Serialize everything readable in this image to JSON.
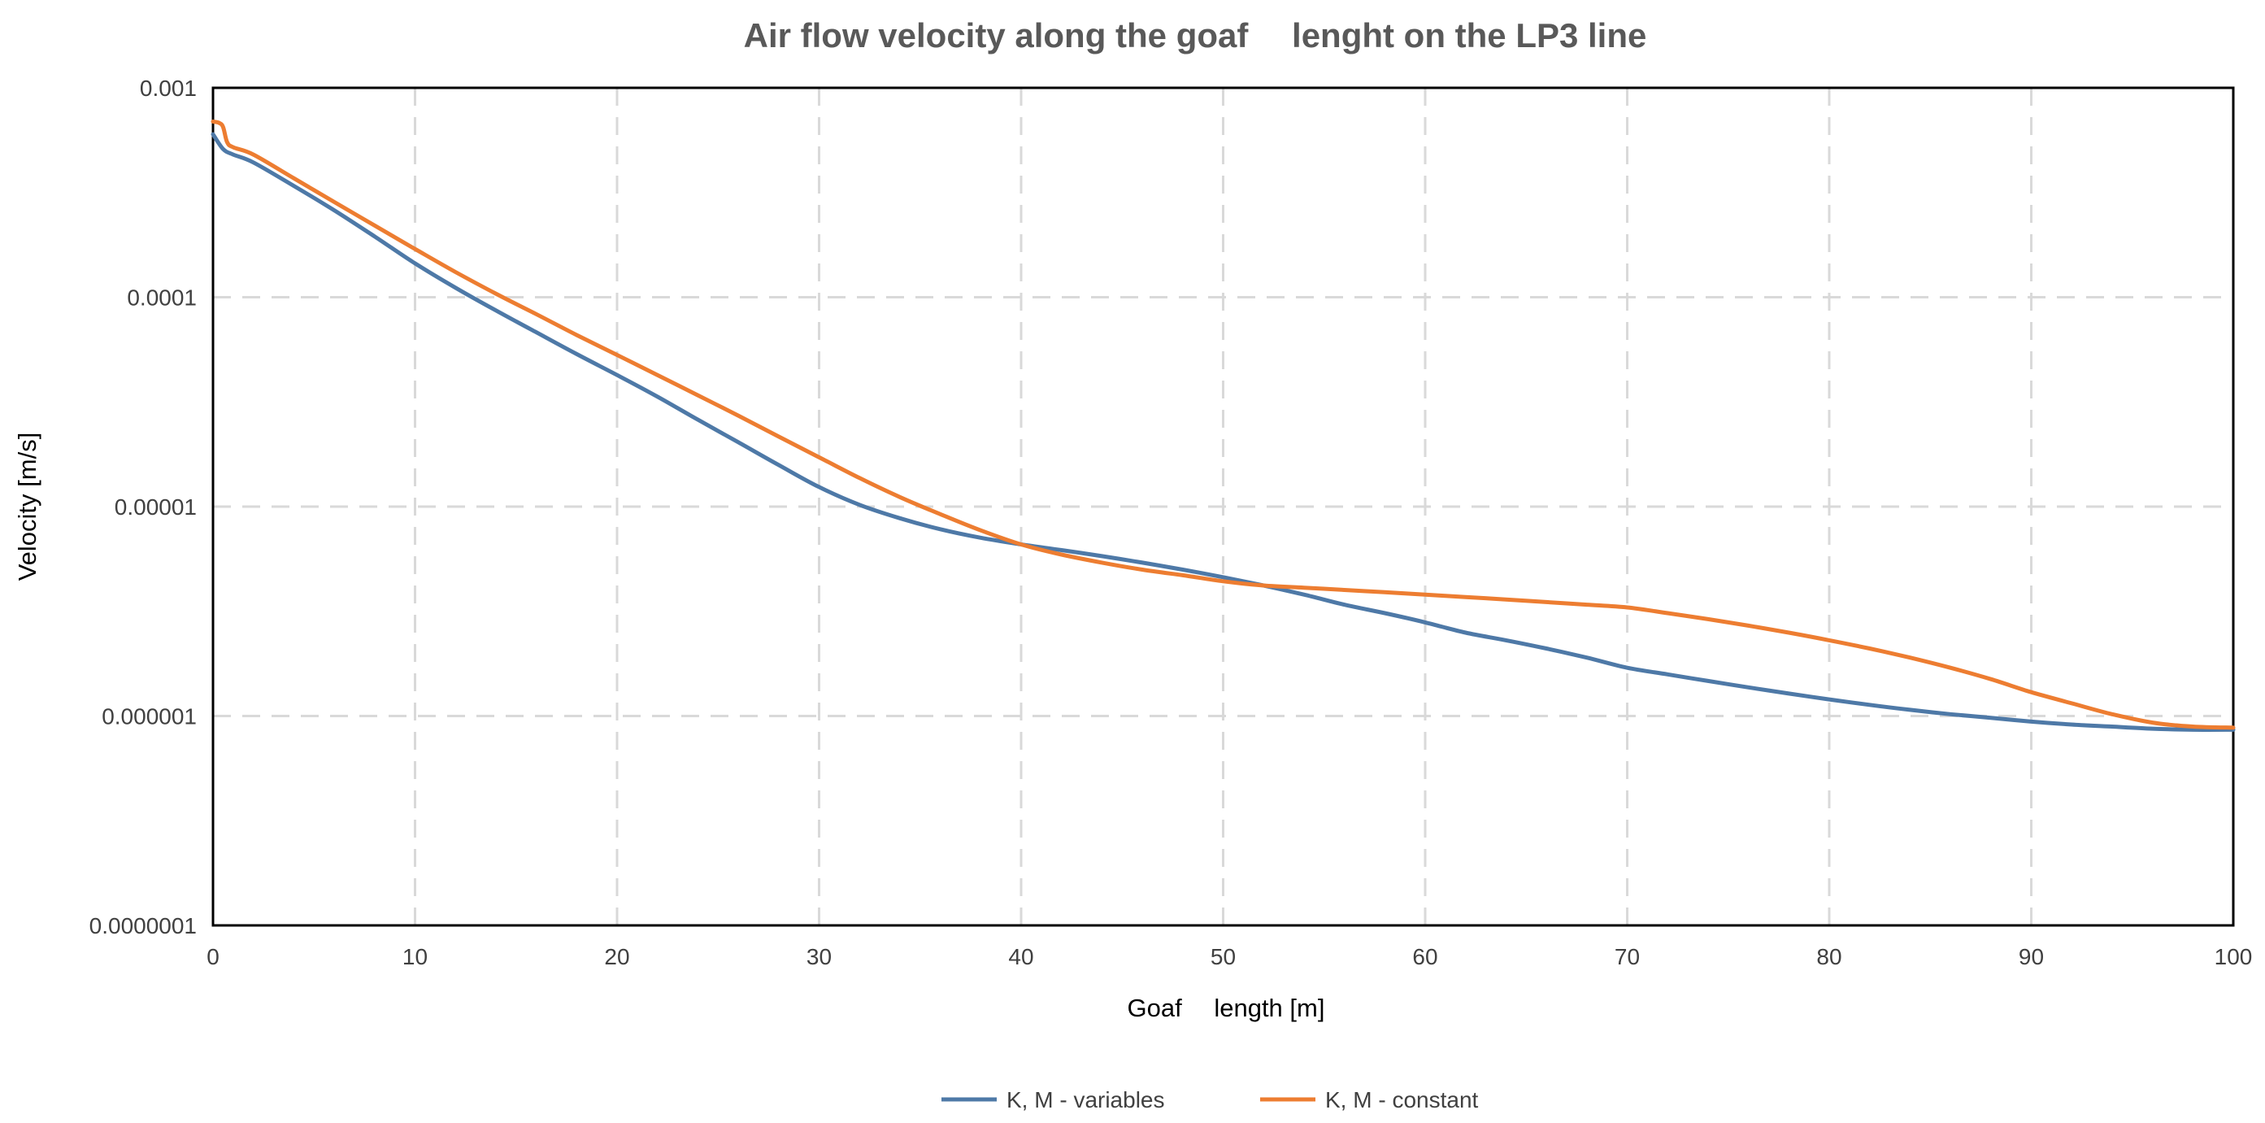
{
  "chart_data": {
    "type": "line",
    "title": "Air flow velocity along the goaf  lenght on the LP3 line",
    "xlabel": "Goaf  length [m]",
    "ylabel": "Velocity [m/s]",
    "xlim": [
      0,
      100
    ],
    "ylim": [
      1e-07,
      0.001
    ],
    "yscale": "log",
    "grid": true,
    "legend_position": "bottom",
    "x_ticks": [
      "0",
      "10",
      "20",
      "30",
      "40",
      "50",
      "60",
      "70",
      "80",
      "90",
      "100"
    ],
    "y_ticks": [
      "0.001",
      "0.0001",
      "0.00001",
      "0.000001",
      "0.0000001"
    ],
    "series": [
      {
        "name": "K, M - variables",
        "color": "#4e79a7",
        "x": [
          0,
          0.5,
          1,
          2,
          4,
          6,
          8,
          10,
          12,
          14,
          16,
          18,
          20,
          22,
          24,
          26,
          28,
          30,
          32,
          34,
          36,
          38,
          40,
          42,
          44,
          46,
          48,
          50,
          52,
          54,
          56,
          58,
          60,
          62,
          64,
          66,
          68,
          70,
          72,
          74,
          76,
          78,
          80,
          82,
          84,
          86,
          88,
          90,
          92,
          94,
          96,
          98,
          100
        ],
        "y": [
          0.0006,
          0.00051,
          0.00048,
          0.00044,
          0.00034,
          0.00026,
          0.000195,
          0.000145,
          0.000111,
          8.65e-05,
          6.8e-05,
          5.35e-05,
          4.25e-05,
          3.35e-05,
          2.6e-05,
          2.03e-05,
          1.58e-05,
          1.24e-05,
          1.02e-05,
          8.8e-06,
          7.8e-06,
          7.1e-06,
          6.6e-06,
          6.2e-06,
          5.8e-06,
          5.4e-06,
          5e-06,
          4.6e-06,
          4.2e-06,
          3.8e-06,
          3.4e-06,
          3.1e-06,
          2.8e-06,
          2.5e-06,
          2.3e-06,
          2.1e-06,
          1.9e-06,
          1.7e-06,
          1.58e-06,
          1.47e-06,
          1.37e-06,
          1.28e-06,
          1.2e-06,
          1.13e-06,
          1.07e-06,
          1.02e-06,
          9.8e-07,
          9.4e-07,
          9.1e-07,
          8.9e-07,
          8.7e-07,
          8.6e-07,
          8.6e-07
        ]
      },
      {
        "name": "K, M - constant",
        "color": "#ed7d31",
        "x": [
          0,
          0.3,
          0.5,
          0.7,
          1,
          2,
          4,
          6,
          8,
          10,
          12,
          14,
          16,
          18,
          20,
          22,
          24,
          26,
          28,
          30,
          32,
          34,
          36,
          38,
          40,
          42,
          44,
          46,
          48,
          50,
          52,
          54,
          56,
          58,
          60,
          62,
          64,
          66,
          68,
          70,
          72,
          74,
          76,
          78,
          80,
          82,
          84,
          86,
          88,
          90,
          92,
          94,
          96,
          98,
          100
        ],
        "y": [
          0.00069,
          0.00068,
          0.00065,
          0.00055,
          0.00052,
          0.00048,
          0.00037,
          0.000285,
          0.00022,
          0.00017,
          0.000132,
          0.000104,
          8.3e-05,
          6.6e-05,
          5.3e-05,
          4.25e-05,
          3.4e-05,
          2.72e-05,
          2.16e-05,
          1.72e-05,
          1.37e-05,
          1.11e-05,
          9.2e-06,
          7.7e-06,
          6.6e-06,
          5.9e-06,
          5.4e-06,
          5e-06,
          4.7e-06,
          4.4e-06,
          4.2e-06,
          4.1e-06,
          4e-06,
          3.9e-06,
          3.8e-06,
          3.7e-06,
          3.6e-06,
          3.5e-06,
          3.4e-06,
          3.3e-06,
          3.1e-06,
          2.9e-06,
          2.7e-06,
          2.5e-06,
          2.3e-06,
          2.1e-06,
          1.9e-06,
          1.7e-06,
          1.5e-06,
          1.3e-06,
          1.15e-06,
          1.02e-06,
          9.3e-07,
          8.9e-07,
          8.8e-07
        ]
      }
    ]
  }
}
